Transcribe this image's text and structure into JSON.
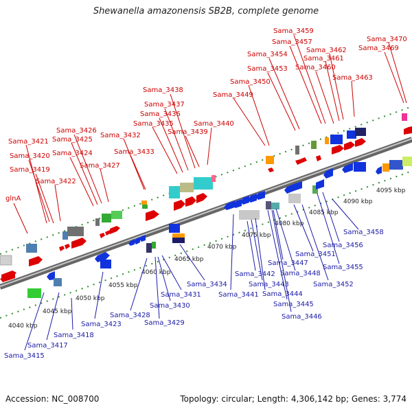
{
  "title": "Shewanella amazonensis SB2B, complete genome",
  "footer": {
    "accession": "Accession: NC_008700",
    "topology": "Topology: circular; Length: 4,306,142 bp; Genes: 3,774"
  },
  "scale_labels": [
    "4040 kbp",
    "4045 kbp",
    "4050 kbp",
    "4055 kbp",
    "4060 kbp",
    "4065 kbp",
    "4070 kbp",
    "4075 kbp",
    "4080 kbp",
    "4085 kbp",
    "4090 kbp",
    "4095 kbp"
  ],
  "forward_genes": [
    "glnA",
    "Sama_3419",
    "Sama_3420",
    "Sama_3421",
    "Sama_3422",
    "Sama_3424",
    "Sama_3425",
    "Sama_3426",
    "Sama_3427",
    "Sama_3432",
    "Sama_3433",
    "Sama_3435",
    "Sama_3436",
    "Sama_3437",
    "Sama_3438",
    "Sama_3439",
    "Sama_3440",
    "Sama_3449",
    "Sama_3450",
    "Sama_3453",
    "Sama_3454",
    "Sama_3457",
    "Sama_3459",
    "Sama_3460",
    "Sama_3461",
    "Sama_3462",
    "Sama_3463",
    "Sama_3469",
    "Sama_3470"
  ],
  "reverse_genes": [
    "Sama_3415",
    "Sama_3417",
    "Sama_3418",
    "Sama_3423",
    "Sama_3428",
    "Sama_3429",
    "Sama_3430",
    "Sama_3431",
    "Sama_3434",
    "Sama_3441",
    "Sama_3442",
    "Sama_3443",
    "Sama_3444",
    "Sama_3445",
    "Sama_3446",
    "Sama_3447",
    "Sama_3448",
    "Sama_3451",
    "Sama_3452",
    "Sama_3455",
    "Sama_3456",
    "Sama_3458"
  ],
  "colors": {
    "forward": "#cc0000",
    "reverse": "#1a1aa6",
    "backbone": "#8c8c8c",
    "tick": "#2e8b2e"
  }
}
